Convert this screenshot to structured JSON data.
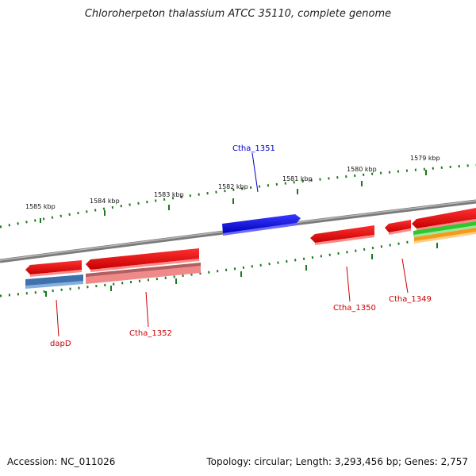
{
  "title": "Chloroherpeton thalassium ATCC 35110, complete genome",
  "accession_text": "Accession: NC_011026",
  "summary_text": "Topology: circular; Length: 3,293,456 bp; Genes: 2,757",
  "colors": {
    "backbone": "#808080",
    "tick": "#1a7a1a",
    "forward_gene": "#1010ee",
    "reverse_gene": "#ee1010",
    "pseudo_gene": "#f08a8a",
    "dapD_blue": "#4a7fb8",
    "green_gene": "#33cc33",
    "orange_gene": "#f59a1a",
    "label_blue": "#0000cc",
    "label_red": "#cc0000"
  },
  "scale_labels": [
    "1585 kbp",
    "1584 kbp",
    "1583 kbp",
    "1582 kbp",
    "1581 kbp",
    "1580 kbp",
    "1579 kbp"
  ],
  "gene_labels": [
    {
      "name": "Ctha_1351",
      "color": "blue"
    },
    {
      "name": "dapD",
      "color": "red"
    },
    {
      "name": "Ctha_1352",
      "color": "red"
    },
    {
      "name": "Ctha_1350",
      "color": "red"
    },
    {
      "name": "Ctha_1349",
      "color": "red"
    }
  ]
}
